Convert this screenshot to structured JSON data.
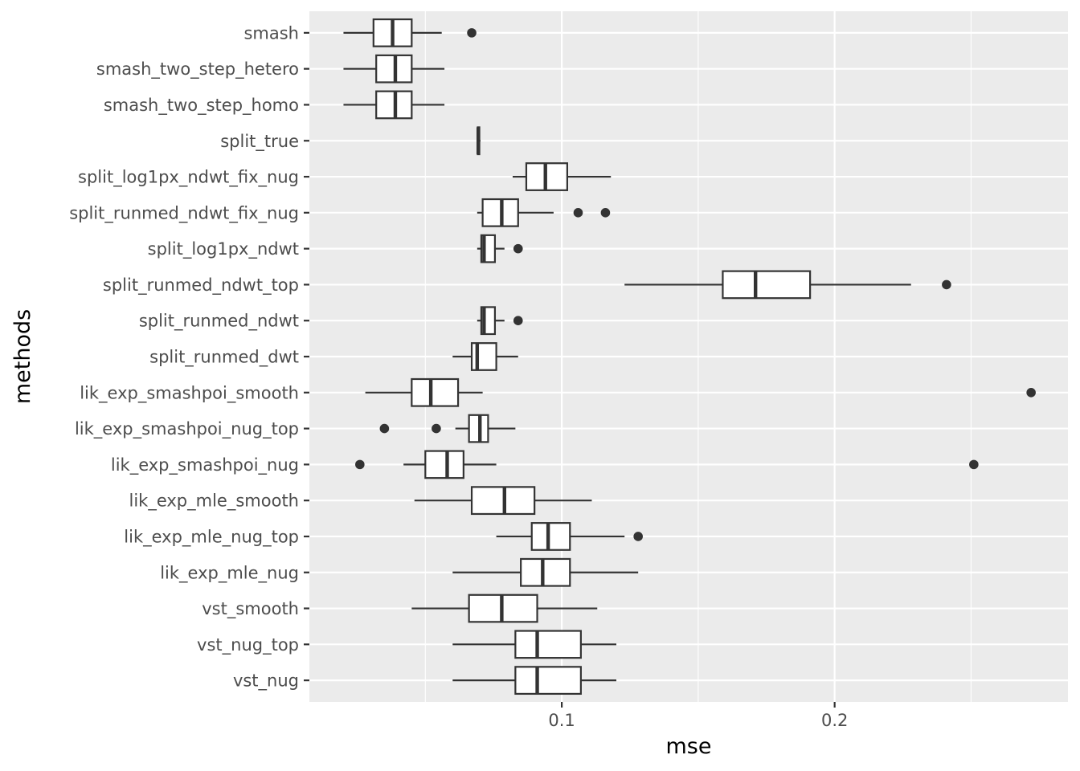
{
  "chart_data": {
    "type": "boxplot",
    "orientation": "horizontal",
    "xlabel": "mse",
    "ylabel": "methods",
    "xlim": [
      0.0075,
      0.2855
    ],
    "x_ticks": [
      {
        "value": 0.1,
        "label": "0.1"
      },
      {
        "value": 0.2,
        "label": "0.2"
      }
    ],
    "x_minor_ticks": [
      0.05,
      0.15,
      0.25
    ],
    "grid": true,
    "colors": {
      "panel": "#ebebeb",
      "grid": "#ffffff",
      "box_fill": "#ffffff",
      "box_stroke": "#333333",
      "outlier": "#333333",
      "tick_text": "#4d4d4d"
    },
    "categories": [
      "smash",
      "smash_two_step_hetero",
      "smash_two_step_homo",
      "split_true",
      "split_log1px_ndwt_fix_nug",
      "split_runmed_ndwt_fix_nug",
      "split_log1px_ndwt",
      "split_runmed_ndwt_top",
      "split_runmed_ndwt",
      "split_runmed_dwt",
      "lik_exp_smashpoi_smooth",
      "lik_exp_smashpoi_nug_top",
      "lik_exp_smashpoi_nug",
      "lik_exp_mle_smooth",
      "lik_exp_mle_nug_top",
      "lik_exp_mle_nug",
      "vst_smooth",
      "vst_nug_top",
      "vst_nug"
    ],
    "boxes": [
      {
        "min": 0.02,
        "q1": 0.031,
        "median": 0.038,
        "q3": 0.045,
        "max": 0.056,
        "outliers": [
          0.067
        ]
      },
      {
        "min": 0.02,
        "q1": 0.032,
        "median": 0.039,
        "q3": 0.045,
        "max": 0.057,
        "outliers": []
      },
      {
        "min": 0.02,
        "q1": 0.032,
        "median": 0.039,
        "q3": 0.045,
        "max": 0.057,
        "outliers": []
      },
      {
        "min": 0.069,
        "q1": 0.0692,
        "median": 0.0694,
        "q3": 0.0698,
        "max": 0.0702,
        "outliers": []
      },
      {
        "min": 0.082,
        "q1": 0.087,
        "median": 0.094,
        "q3": 0.102,
        "max": 0.118,
        "outliers": []
      },
      {
        "min": 0.069,
        "q1": 0.071,
        "median": 0.078,
        "q3": 0.084,
        "max": 0.097,
        "outliers": [
          0.106,
          0.116
        ]
      },
      {
        "min": 0.069,
        "q1": 0.0705,
        "median": 0.0715,
        "q3": 0.0755,
        "max": 0.079,
        "outliers": [
          0.084
        ]
      },
      {
        "min": 0.123,
        "q1": 0.159,
        "median": 0.171,
        "q3": 0.191,
        "max": 0.228,
        "outliers": [
          0.241
        ]
      },
      {
        "min": 0.069,
        "q1": 0.0705,
        "median": 0.0715,
        "q3": 0.0755,
        "max": 0.079,
        "outliers": [
          0.084
        ]
      },
      {
        "min": 0.06,
        "q1": 0.067,
        "median": 0.069,
        "q3": 0.076,
        "max": 0.084,
        "outliers": []
      },
      {
        "min": 0.028,
        "q1": 0.045,
        "median": 0.052,
        "q3": 0.062,
        "max": 0.071,
        "outliers": [
          0.272
        ]
      },
      {
        "min": 0.061,
        "q1": 0.066,
        "median": 0.07,
        "q3": 0.073,
        "max": 0.083,
        "outliers": [
          0.035,
          0.054
        ]
      },
      {
        "min": 0.042,
        "q1": 0.05,
        "median": 0.058,
        "q3": 0.064,
        "max": 0.076,
        "outliers": [
          0.026,
          0.251
        ]
      },
      {
        "min": 0.046,
        "q1": 0.067,
        "median": 0.079,
        "q3": 0.09,
        "max": 0.111,
        "outliers": []
      },
      {
        "min": 0.076,
        "q1": 0.089,
        "median": 0.095,
        "q3": 0.103,
        "max": 0.123,
        "outliers": [
          0.128
        ]
      },
      {
        "min": 0.06,
        "q1": 0.085,
        "median": 0.093,
        "q3": 0.103,
        "max": 0.128,
        "outliers": []
      },
      {
        "min": 0.045,
        "q1": 0.066,
        "median": 0.078,
        "q3": 0.091,
        "max": 0.113,
        "outliers": []
      },
      {
        "min": 0.06,
        "q1": 0.083,
        "median": 0.091,
        "q3": 0.107,
        "max": 0.12,
        "outliers": []
      },
      {
        "min": 0.06,
        "q1": 0.083,
        "median": 0.091,
        "q3": 0.107,
        "max": 0.12,
        "outliers": []
      }
    ]
  }
}
